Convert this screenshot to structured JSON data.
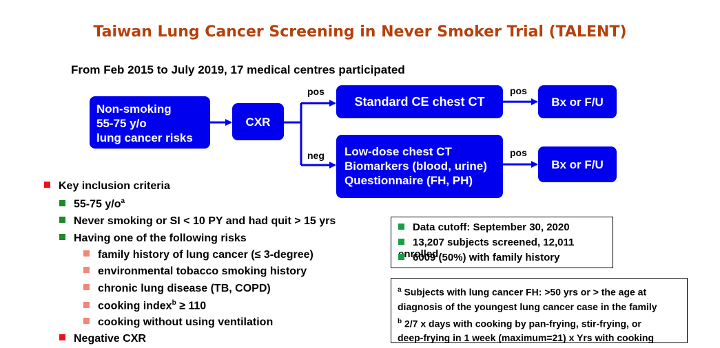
{
  "title": "Taiwan Lung Cancer Screening in Never Smoker Trial (TALENT)",
  "subtitle": "From Feb 2015 to July 2019, 17 medical centres participated",
  "flow": {
    "start": [
      "Non-smoking",
      "55-75 y/o",
      "lung cancer risks"
    ],
    "cxr": "CXR",
    "standard_ct": "Standard CE chest CT",
    "low_dose": [
      "Low-dose chest CT",
      "Biomarkers (blood, urine)",
      "Questionnaire (FH, PH)"
    ],
    "outcome_top": "Bx or F/U",
    "outcome_bottom": "Bx or F/U",
    "label_pos_top": "pos",
    "label_neg": "neg",
    "label_pos_std": "pos",
    "label_pos_ld": "pos",
    "colors": {
      "box": "#0000ee",
      "title": "#b5400b"
    }
  },
  "criteria": {
    "heading": "Key inclusion criteria",
    "age": "55-75 y/o",
    "age_sup": "a",
    "never_smoking": "Never smoking or SI < 10 PY and had quit > 15 yrs",
    "risks_heading": "Having one of the following risks",
    "risks": [
      "family history of lung cancer (≤ 3-degree)",
      "environmental tobacco smoking history",
      "chronic lung disease (TB, COPD)",
      "cooking index",
      "cooking without using ventilation"
    ],
    "cooking_sup": "b",
    "cooking_suffix": " ≥ 110",
    "negative": "Negative CXR"
  },
  "cutoff": [
    "Data cutoff: September 30, 2020",
    "13,207 subjects screened, 12,011 enrolled",
    "6009 (50%) with family history"
  ],
  "footnotes": {
    "a_mark": "a",
    "a_text": " Subjects with lung cancer FH: >50 yrs or > the age at",
    "a_text2": "diagnosis of the youngest lung cancer case in the family",
    "b_mark": "b",
    "b_text": " 2/7 x days with cooking by pan-frying, stir-frying, or",
    "b_text2": "deep-frying in 1 week (maximum=21) x Yrs with cooking"
  }
}
